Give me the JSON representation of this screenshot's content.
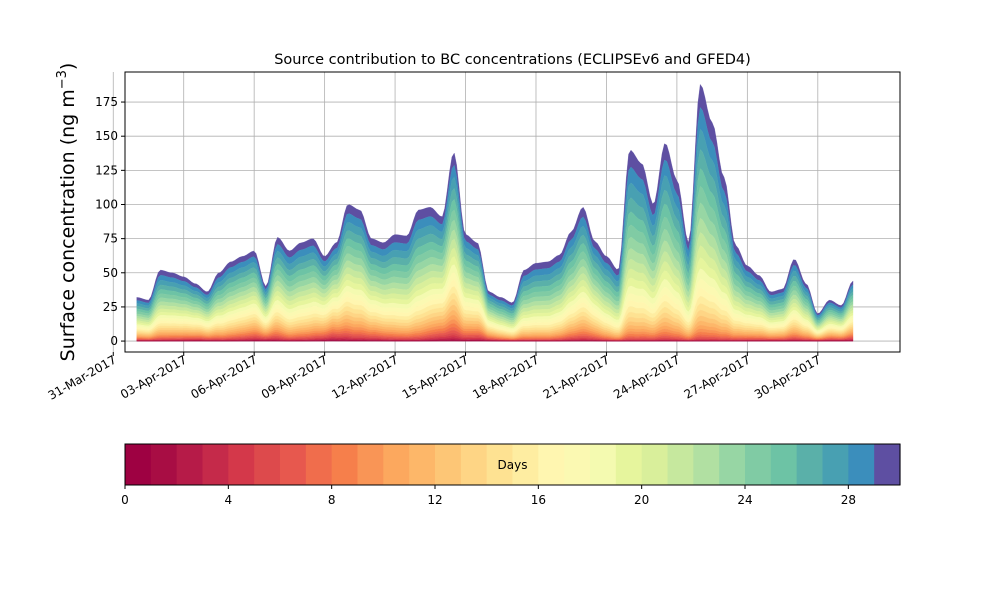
{
  "chart_data": {
    "type": "area",
    "stacked": true,
    "title": "Source contribution to BC concentrations (ECLIPSEv6 and GFED4)",
    "ylabel": "Surface concentration (ng m",
    "ylabel_sup": "−3",
    "ylabel_close": ")",
    "xlabel": "",
    "ylim": [
      -8,
      197
    ],
    "xlim": [
      "2017-03-31T12:00",
      "2017-05-03T12:00"
    ],
    "yticks": [
      0,
      25,
      50,
      75,
      100,
      125,
      150,
      175
    ],
    "xticks": [
      {
        "date": "2017-03-31",
        "label": "31-Mar-2017"
      },
      {
        "date": "2017-04-03",
        "label": "03-Apr-2017"
      },
      {
        "date": "2017-04-06",
        "label": "06-Apr-2017"
      },
      {
        "date": "2017-04-09",
        "label": "09-Apr-2017"
      },
      {
        "date": "2017-04-12",
        "label": "12-Apr-2017"
      },
      {
        "date": "2017-04-15",
        "label": "15-Apr-2017"
      },
      {
        "date": "2017-04-18",
        "label": "18-Apr-2017"
      },
      {
        "date": "2017-04-21",
        "label": "21-Apr-2017"
      },
      {
        "date": "2017-04-24",
        "label": "24-Apr-2017"
      },
      {
        "date": "2017-04-27",
        "label": "27-Apr-2017"
      },
      {
        "date": "2017-04-30",
        "label": "30-Apr-2017"
      }
    ],
    "grid": true,
    "series_count": 30,
    "total": {
      "dates": [
        "2017-04-01T00:00",
        "2017-04-01T12:00",
        "2017-04-02T00:00",
        "2017-04-02T12:00",
        "2017-04-03T00:00",
        "2017-04-03T12:00",
        "2017-04-04T00:00",
        "2017-04-04T12:00",
        "2017-04-05T00:00",
        "2017-04-05T12:00",
        "2017-04-06T00:00",
        "2017-04-06T12:00",
        "2017-04-07T00:00",
        "2017-04-07T12:00",
        "2017-04-08T00:00",
        "2017-04-08T12:00",
        "2017-04-09T00:00",
        "2017-04-09T12:00",
        "2017-04-10T00:00",
        "2017-04-10T12:00",
        "2017-04-11T00:00",
        "2017-04-11T12:00",
        "2017-04-12T00:00",
        "2017-04-12T12:00",
        "2017-04-13T00:00",
        "2017-04-13T12:00",
        "2017-04-14T00:00",
        "2017-04-14T12:00",
        "2017-04-15T00:00",
        "2017-04-15T12:00",
        "2017-04-16T00:00",
        "2017-04-16T12:00",
        "2017-04-17T00:00",
        "2017-04-17T12:00",
        "2017-04-18T00:00",
        "2017-04-18T12:00",
        "2017-04-19T00:00",
        "2017-04-19T12:00",
        "2017-04-20T00:00",
        "2017-04-20T12:00",
        "2017-04-21T00:00",
        "2017-04-21T12:00",
        "2017-04-22T00:00",
        "2017-04-22T12:00",
        "2017-04-23T00:00",
        "2017-04-23T12:00",
        "2017-04-24T00:00",
        "2017-04-24T12:00",
        "2017-04-25T00:00",
        "2017-04-25T12:00",
        "2017-04-26T00:00",
        "2017-04-26T12:00",
        "2017-04-27T00:00",
        "2017-04-27T12:00",
        "2017-04-28T00:00",
        "2017-04-28T12:00",
        "2017-04-29T00:00",
        "2017-04-29T12:00",
        "2017-04-30T00:00",
        "2017-04-30T12:00",
        "2017-05-01T00:00",
        "2017-05-01T12:00"
      ],
      "values": [
        32,
        30,
        52,
        50,
        47,
        42,
        36,
        50,
        58,
        62,
        66,
        40,
        76,
        66,
        72,
        75,
        62,
        72,
        100,
        96,
        75,
        72,
        78,
        77,
        96,
        98,
        91,
        138,
        78,
        72,
        36,
        32,
        28,
        52,
        57,
        58,
        63,
        80,
        98,
        73,
        62,
        52,
        140,
        130,
        100,
        145,
        118,
        72,
        188,
        160,
        120,
        70,
        55,
        48,
        36,
        38,
        60,
        42,
        20,
        30,
        26,
        44
      ]
    },
    "colorbar": {
      "label": "Days",
      "vmin": 0,
      "vmax": 30,
      "ticks": [
        0,
        4,
        8,
        12,
        16,
        20,
        24,
        28
      ],
      "colormap": "Spectral",
      "colors": [
        "#9e0142",
        "#a80d44",
        "#b61b48",
        "#c52a4a",
        "#d4384a",
        "#dd4a4c",
        "#e7584e",
        "#f06d4c",
        "#f67f4b",
        "#f99556",
        "#fca85e",
        "#fdb769",
        "#fdc676",
        "#fed585",
        "#fee292",
        "#feeda1",
        "#fff6b0",
        "#fbf9b2",
        "#f4fab0",
        "#e6f59d",
        "#d9ef9b",
        "#c6e89e",
        "#b1e0a2",
        "#97d6a4",
        "#80cba4",
        "#6dc3a5",
        "#5ab0a9",
        "#48a0b2",
        "#3b8ebc",
        "#5e4fa2"
      ]
    },
    "lightness_zones": [
      0.6,
      0.65,
      0.6,
      0.52,
      0.65,
      0.55,
      0.45,
      0.68,
      0.62,
      0.42,
      0.58,
      0.55,
      0.68,
      0.7,
      0.5,
      0.55,
      0.48,
      0.68,
      0.78,
      0.8,
      0.65,
      0.62,
      0.85,
      0.88,
      0.78,
      0.82,
      0.9,
      0.86,
      0.7,
      0.62,
      0.6,
      0.62,
      0.5,
      0.48
    ]
  }
}
